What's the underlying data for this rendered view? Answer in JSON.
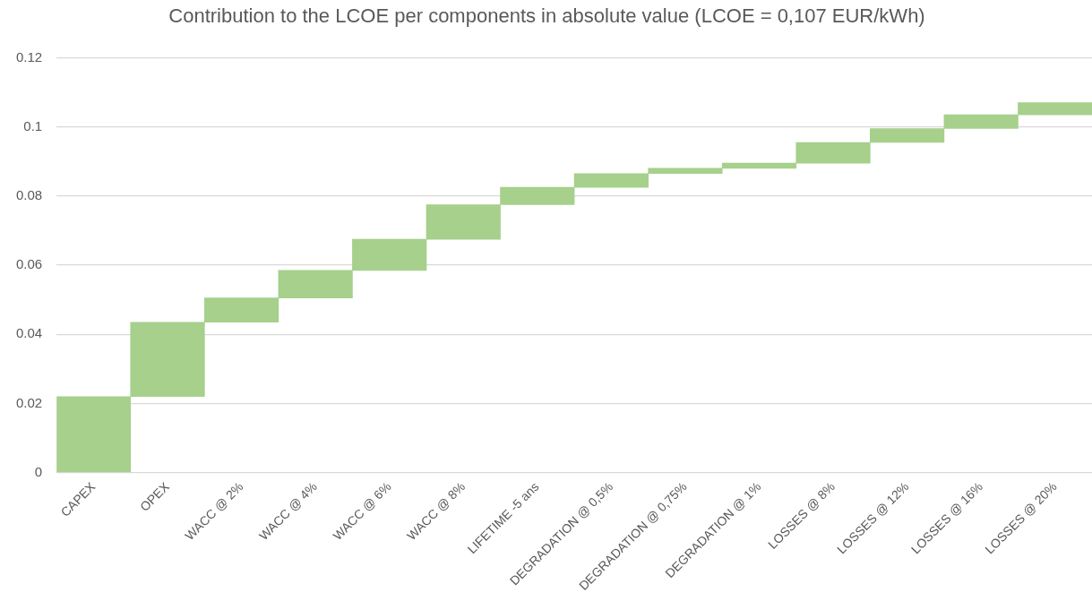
{
  "chart_data": {
    "type": "bar",
    "title": "Contribution to the LCOE per components in absolute value (LCOE = 0,107 EUR/kWh)",
    "categories": [
      "CAPEX",
      "OPEX",
      "WACC @ 2%",
      "WACC @ 4%",
      "WACC @ 6%",
      "WACC @ 8%",
      "LIFETIME -5 ans",
      "DEGRADATION @ 0,5%",
      "DEGRADATION @ 0,75%",
      "DEGRADATION @ 1%",
      "LOSSES @ 8%",
      "LOSSES @ 12%",
      "LOSSES @ 16%",
      "LOSSES @ 20%"
    ],
    "base": [
      0,
      0.022,
      0.0435,
      0.0505,
      0.0585,
      0.0675,
      0.0775,
      0.0825,
      0.0865,
      0.088,
      0.0895,
      0.0955,
      0.0995,
      0.1035
    ],
    "values": [
      0.022,
      0.0215,
      0.007,
      0.008,
      0.009,
      0.01,
      0.005,
      0.004,
      0.0015,
      0.0015,
      0.006,
      0.004,
      0.004,
      0.0035
    ],
    "color": "#a6d08b",
    "ylim": [
      0,
      0.12
    ],
    "yticks": [
      0,
      0.02,
      0.04,
      0.06,
      0.08,
      0.1,
      0.12
    ],
    "grid": "y"
  }
}
